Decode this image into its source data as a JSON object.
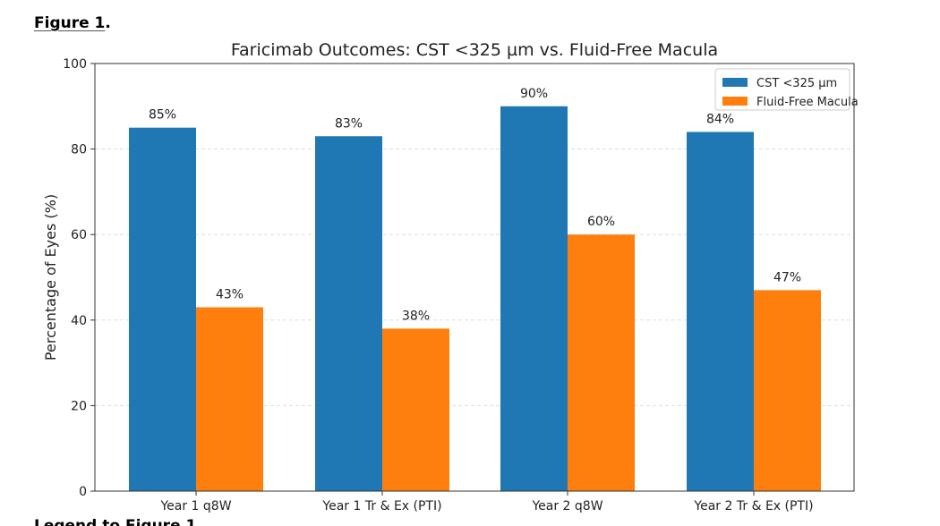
{
  "figure": {
    "label": "Figure 1",
    "label_suffix": ".",
    "caption_partial": "Legend to Figure 1"
  },
  "chart_data": {
    "type": "bar",
    "title": "Faricimab Outcomes: CST <325 µm vs. Fluid-Free Macula",
    "xlabel": "",
    "ylabel": "Percentage of Eyes (%)",
    "ylim": [
      0,
      100
    ],
    "yticks": [
      0,
      20,
      40,
      60,
      80,
      100
    ],
    "grid": "y-dashed",
    "legend_position": "upper right",
    "categories": [
      "Year 1 q8W",
      "Year 1 Tr & Ex (PTI)",
      "Year 2 q8W",
      "Year 2 Tr & Ex (PTI)"
    ],
    "series": [
      {
        "name": "CST <325 µm",
        "color": "#1f77b4",
        "values": [
          85,
          83,
          90,
          84
        ],
        "labels": [
          "85%",
          "83%",
          "90%",
          "84%"
        ]
      },
      {
        "name": "Fluid-Free Macula",
        "color": "#ff7f0e",
        "values": [
          43,
          38,
          60,
          47
        ],
        "labels": [
          "43%",
          "38%",
          "60%",
          "47%"
        ]
      }
    ]
  }
}
